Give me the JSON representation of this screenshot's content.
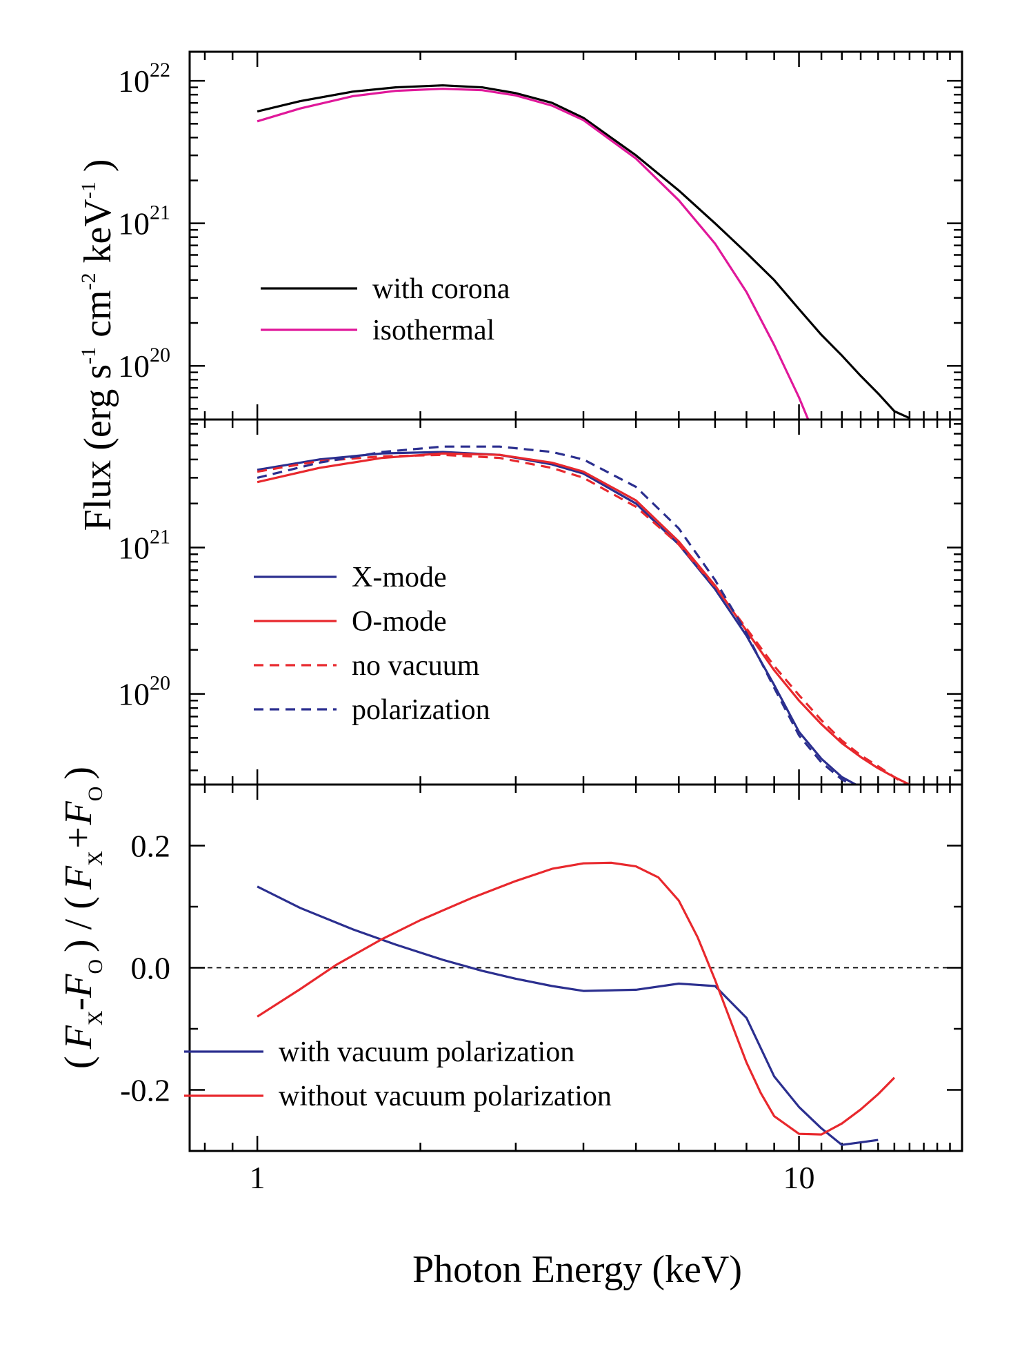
{
  "x_axis": {
    "label": "Photon Energy (keV)",
    "scale": "log",
    "range": [
      0.75,
      20
    ],
    "tick_labels": [
      "1",
      "10"
    ]
  },
  "y_axis_label_flux": {
    "prefix": "Flux (erg s",
    "sup1": "-1",
    "mid": " cm",
    "sup2": "-2",
    "mid2": " keV",
    "sup3": "-1",
    "suffix": " )"
  },
  "y_axis_label_ratio": "( F_X - F_O ) / ( F_X + F_O )",
  "y_axis_label_ratio_parts": {
    "open": "(",
    "fx": "F",
    "x_sub": "X",
    "minus": "-F",
    "o_sub": "O",
    "mid": ") / (",
    "fx2": "F",
    "x_sub2": "X",
    "plus": "+F",
    "o_sub2": "O",
    "close": ")"
  },
  "chart_data": [
    {
      "type": "line",
      "panel": "top",
      "y_scale": "log",
      "ylim": [
        4.2e+19,
        1.6e+22
      ],
      "y_ticks": [
        {
          "base": "10",
          "exp": "22",
          "value": 1e+22
        },
        {
          "base": "10",
          "exp": "21",
          "value": 1e+21
        },
        {
          "base": "10",
          "exp": "20",
          "value": 1e+20
        }
      ],
      "series": [
        {
          "name": "with corona",
          "color": "#000000",
          "dash": "solid",
          "points": [
            [
              1.0,
              6.1e+21
            ],
            [
              1.2,
              7.2e+21
            ],
            [
              1.5,
              8.4e+21
            ],
            [
              1.8,
              9e+21
            ],
            [
              2.2,
              9.3e+21
            ],
            [
              2.6,
              9e+21
            ],
            [
              3.0,
              8.2e+21
            ],
            [
              3.5,
              7e+21
            ],
            [
              4.0,
              5.5e+21
            ],
            [
              5.0,
              3e+21
            ],
            [
              6.0,
              1.7e+21
            ],
            [
              7.0,
              1e+21
            ],
            [
              8.0,
              6.2e+20
            ],
            [
              9.0,
              4e+20
            ],
            [
              10.0,
              2.5e+20
            ],
            [
              11.0,
              1.65e+20
            ],
            [
              12.0,
              1.18e+20
            ],
            [
              13.0,
              8.5e+19
            ],
            [
              14.0,
              6.4e+19
            ],
            [
              15.0,
              4.8e+19
            ],
            [
              16.0,
              4.3e+19
            ]
          ]
        },
        {
          "name": "isothermal",
          "color": "#e0189a",
          "dash": "solid",
          "points": [
            [
              1.0,
              5.2e+21
            ],
            [
              1.2,
              6.4e+21
            ],
            [
              1.5,
              7.8e+21
            ],
            [
              1.8,
              8.5e+21
            ],
            [
              2.2,
              8.8e+21
            ],
            [
              2.6,
              8.6e+21
            ],
            [
              3.0,
              7.9e+21
            ],
            [
              3.5,
              6.7e+21
            ],
            [
              4.0,
              5.3e+21
            ],
            [
              5.0,
              2.85e+21
            ],
            [
              6.0,
              1.45e+21
            ],
            [
              7.0,
              7.2e+20
            ],
            [
              8.0,
              3.3e+20
            ],
            [
              9.0,
              1.4e+20
            ],
            [
              10.0,
              6e+19
            ],
            [
              10.4,
              4.2e+19
            ]
          ]
        }
      ],
      "legend": [
        {
          "name": "with corona",
          "color": "#000000",
          "dash": "solid"
        },
        {
          "name": "isothermal",
          "color": "#e0189a",
          "dash": "solid"
        }
      ]
    },
    {
      "type": "line",
      "panel": "middle",
      "y_scale": "log",
      "ylim": [
        2.4e+19,
        7.5e+21
      ],
      "y_ticks": [
        {
          "base": "10",
          "exp": "21",
          "value": 1e+21
        },
        {
          "base": "10",
          "exp": "20",
          "value": 1e+20
        }
      ],
      "series": [
        {
          "name": "X-mode",
          "color": "#2b2f8f",
          "dash": "solid",
          "points": [
            [
              1.0,
              3.4e+21
            ],
            [
              1.3,
              4e+21
            ],
            [
              1.7,
              4.4e+21
            ],
            [
              2.2,
              4.5e+21
            ],
            [
              2.8,
              4.3e+21
            ],
            [
              3.5,
              3.7e+21
            ],
            [
              4.0,
              3.2e+21
            ],
            [
              5.0,
              2e+21
            ],
            [
              6.0,
              1.05e+21
            ],
            [
              7.0,
              5.2e+20
            ],
            [
              8.0,
              2.5e+20
            ],
            [
              9.0,
              1.15e+20
            ],
            [
              10.0,
              5.5e+19
            ],
            [
              11.0,
              3.6e+19
            ],
            [
              12.0,
              2.7e+19
            ],
            [
              13.0,
              2.3e+19
            ]
          ]
        },
        {
          "name": "O-mode",
          "color": "#e8282d",
          "dash": "solid",
          "points": [
            [
              1.0,
              2.8e+21
            ],
            [
              1.3,
              3.5e+21
            ],
            [
              1.7,
              4.1e+21
            ],
            [
              2.2,
              4.4e+21
            ],
            [
              2.8,
              4.3e+21
            ],
            [
              3.5,
              3.8e+21
            ],
            [
              4.0,
              3.3e+21
            ],
            [
              5.0,
              2.1e+21
            ],
            [
              6.0,
              1.1e+21
            ],
            [
              7.0,
              5.5e+20
            ],
            [
              8.0,
              2.7e+20
            ],
            [
              9.0,
              1.45e+20
            ],
            [
              10.0,
              9e+19
            ],
            [
              11.0,
              6.2e+19
            ],
            [
              12.0,
              4.6e+19
            ],
            [
              13.0,
              3.7e+19
            ],
            [
              14.0,
              3.1e+19
            ],
            [
              15.0,
              2.7e+19
            ],
            [
              16.0,
              2.4e+19
            ]
          ]
        },
        {
          "name": "no vacuum",
          "color": "#e8282d",
          "dash": "dashed",
          "points": [
            [
              1.0,
              3.3e+21
            ],
            [
              1.3,
              3.9e+21
            ],
            [
              1.7,
              4.2e+21
            ],
            [
              2.2,
              4.3e+21
            ],
            [
              2.8,
              4.1e+21
            ],
            [
              3.5,
              3.5e+21
            ],
            [
              4.0,
              3e+21
            ],
            [
              5.0,
              1.9e+21
            ],
            [
              6.0,
              1.05e+21
            ],
            [
              7.0,
              5.4e+20
            ],
            [
              8.0,
              2.8e+20
            ],
            [
              9.0,
              1.55e+20
            ],
            [
              10.0,
              9.8e+19
            ],
            [
              11.0,
              6.6e+19
            ],
            [
              12.0,
              4.8e+19
            ],
            [
              13.0,
              3.8e+19
            ],
            [
              14.0,
              3.2e+19
            ],
            [
              15.0,
              2.7e+19
            ],
            [
              16.0,
              2.3e+19
            ]
          ]
        },
        {
          "name": "polarization",
          "color": "#2b2f8f",
          "dash": "dashed",
          "points": [
            [
              1.0,
              3e+21
            ],
            [
              1.3,
              3.8e+21
            ],
            [
              1.7,
              4.5e+21
            ],
            [
              2.2,
              4.9e+21
            ],
            [
              2.8,
              4.9e+21
            ],
            [
              3.5,
              4.5e+21
            ],
            [
              4.0,
              4e+21
            ],
            [
              5.0,
              2.6e+21
            ],
            [
              6.0,
              1.35e+21
            ],
            [
              7.0,
              6e+20
            ],
            [
              8.0,
              2.6e+20
            ],
            [
              9.0,
              1.1e+20
            ],
            [
              10.0,
              5.2e+19
            ],
            [
              11.0,
              3.4e+19
            ],
            [
              12.0,
              2.6e+19
            ],
            [
              13.0,
              2.2e+19
            ]
          ]
        }
      ],
      "legend": [
        {
          "name": "X-mode",
          "color": "#2b2f8f",
          "dash": "solid"
        },
        {
          "name": "O-mode",
          "color": "#e8282d",
          "dash": "solid"
        },
        {
          "name": "no vacuum",
          "color": "#e8282d",
          "dash": "dashed"
        },
        {
          "name": "polarization",
          "color": "#2b2f8f",
          "dash": "dashed"
        }
      ]
    },
    {
      "type": "line",
      "panel": "bottom",
      "y_scale": "linear",
      "ylim": [
        -0.3,
        0.3
      ],
      "y_ticks": [
        {
          "label": "0.2",
          "value": 0.2
        },
        {
          "label": "0.0",
          "value": 0.0
        },
        {
          "label": "-0.2",
          "value": -0.2
        }
      ],
      "reference_line": {
        "y": 0.0,
        "style": "dashed",
        "color": "#000000"
      },
      "series": [
        {
          "name": "with vacuum polarization",
          "color": "#2b2f8f",
          "dash": "solid",
          "points": [
            [
              1.0,
              0.133
            ],
            [
              1.2,
              0.098
            ],
            [
              1.5,
              0.063
            ],
            [
              1.8,
              0.038
            ],
            [
              2.2,
              0.013
            ],
            [
              2.6,
              -0.005
            ],
            [
              3.0,
              -0.018
            ],
            [
              3.5,
              -0.03
            ],
            [
              4.0,
              -0.038
            ],
            [
              5.0,
              -0.036
            ],
            [
              6.0,
              -0.026
            ],
            [
              7.0,
              -0.03
            ],
            [
              8.0,
              -0.082
            ],
            [
              9.0,
              -0.178
            ],
            [
              10.0,
              -0.228
            ],
            [
              11.0,
              -0.263
            ],
            [
              12.0,
              -0.29
            ],
            [
              14.0,
              -0.282
            ]
          ]
        },
        {
          "name": "without vacuum polarization",
          "color": "#e8282d",
          "dash": "solid",
          "points": [
            [
              1.0,
              -0.08
            ],
            [
              1.2,
              -0.035
            ],
            [
              1.4,
              0.005
            ],
            [
              1.7,
              0.047
            ],
            [
              2.0,
              0.078
            ],
            [
              2.5,
              0.115
            ],
            [
              3.0,
              0.142
            ],
            [
              3.5,
              0.162
            ],
            [
              4.0,
              0.171
            ],
            [
              4.5,
              0.172
            ],
            [
              5.0,
              0.166
            ],
            [
              5.5,
              0.148
            ],
            [
              6.0,
              0.11
            ],
            [
              6.5,
              0.05
            ],
            [
              7.0,
              -0.02
            ],
            [
              7.5,
              -0.09
            ],
            [
              8.0,
              -0.155
            ],
            [
              8.5,
              -0.205
            ],
            [
              9.0,
              -0.243
            ],
            [
              10.0,
              -0.272
            ],
            [
              11.0,
              -0.273
            ],
            [
              12.0,
              -0.255
            ],
            [
              13.0,
              -0.232
            ],
            [
              14.0,
              -0.207
            ],
            [
              15.0,
              -0.18
            ]
          ]
        }
      ],
      "legend": [
        {
          "name": "with vacuum polarization",
          "color": "#2b2f8f",
          "dash": "solid"
        },
        {
          "name": "without vacuum polarization",
          "color": "#e8282d",
          "dash": "solid"
        }
      ]
    }
  ]
}
